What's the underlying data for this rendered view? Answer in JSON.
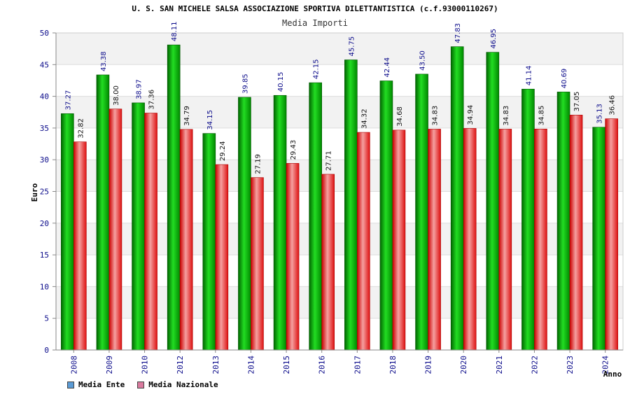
{
  "colors": {
    "ente_swatch": "#5b9bd5",
    "nazionale_swatch": "#d97a9e",
    "ente_bar": "#00b000",
    "nazionale_bar": "#ee2a2a",
    "axis_text": "#0a0a8a"
  },
  "chart_data": {
    "type": "bar",
    "title": "U. S. SAN MICHELE SALSA ASSOCIAZIONE SPORTIVA DILETTANTISTICA (c.f.93000110267)",
    "subtitle": "Media Importi",
    "xlabel": "Anno",
    "ylabel": "Euro",
    "ylim": [
      0,
      50
    ],
    "yticks": [
      0,
      5,
      10,
      15,
      20,
      25,
      30,
      35,
      40,
      45,
      50
    ],
    "grid": true,
    "legend_position": "bottom-left",
    "categories": [
      "2008",
      "2009",
      "2010",
      "2012",
      "2013",
      "2014",
      "2015",
      "2016",
      "2017",
      "2018",
      "2019",
      "2020",
      "2021",
      "2022",
      "2023",
      "2024"
    ],
    "series": [
      {
        "name": "Media Ente",
        "values": [
          37.27,
          43.38,
          38.97,
          48.11,
          34.15,
          39.85,
          40.15,
          42.15,
          45.75,
          42.44,
          43.5,
          47.83,
          46.95,
          41.14,
          40.69,
          35.13
        ]
      },
      {
        "name": "Media Nazionale",
        "values": [
          32.82,
          38.0,
          37.36,
          34.79,
          29.24,
          27.19,
          29.43,
          27.71,
          34.32,
          34.68,
          34.83,
          34.94,
          34.83,
          34.85,
          37.05,
          36.46
        ]
      }
    ]
  }
}
